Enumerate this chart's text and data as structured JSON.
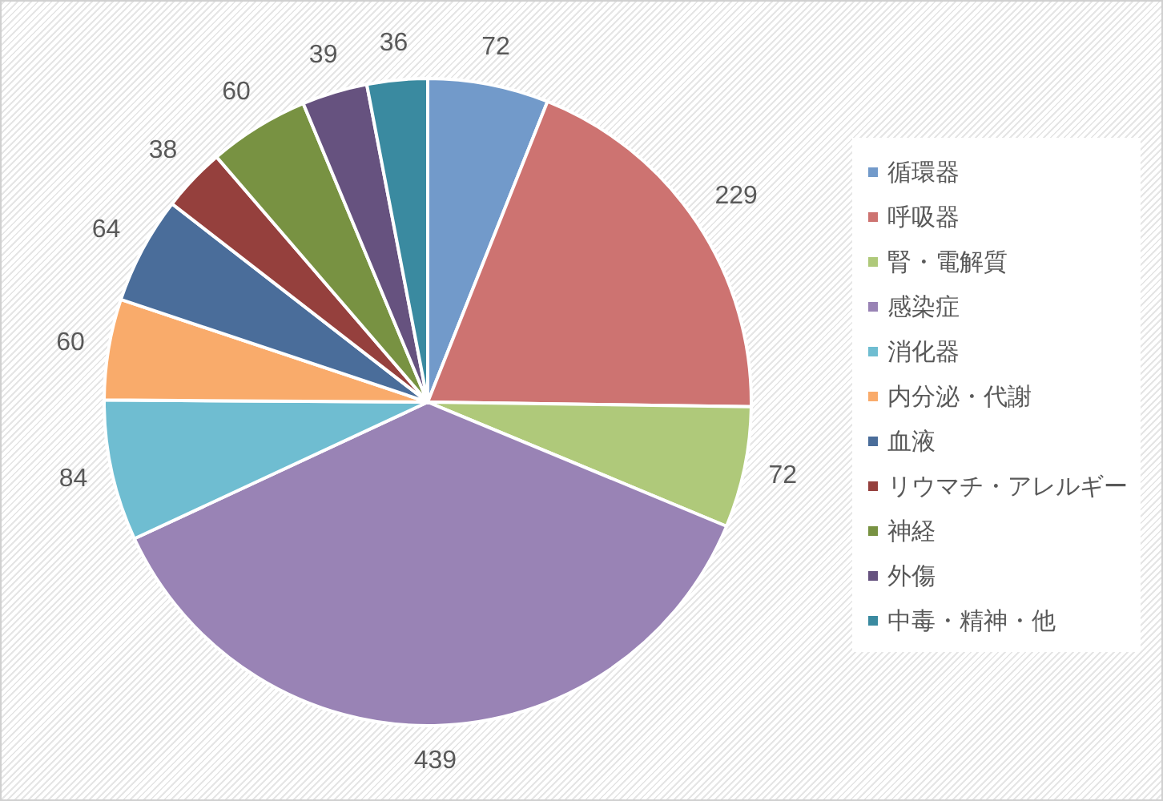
{
  "chart_data": {
    "type": "pie",
    "categories": [
      "循環器",
      "呼吸器",
      "腎・電解質",
      "感染症",
      "消化器",
      "内分泌・代謝",
      "血液",
      "リウマチ・アレルギー",
      "神経",
      "外傷",
      "中毒・精神・他"
    ],
    "values": [
      72,
      229,
      72,
      439,
      84,
      60,
      64,
      38,
      60,
      39,
      36
    ],
    "colors": [
      "#729aca",
      "#cd7371",
      "#afc97a",
      "#9983b5",
      "#6fbdd1",
      "#f9ab6b",
      "#4a6d9a",
      "#95403d",
      "#789242",
      "#66527f",
      "#3a8aa0"
    ],
    "data_labels": true,
    "legend": "right"
  }
}
